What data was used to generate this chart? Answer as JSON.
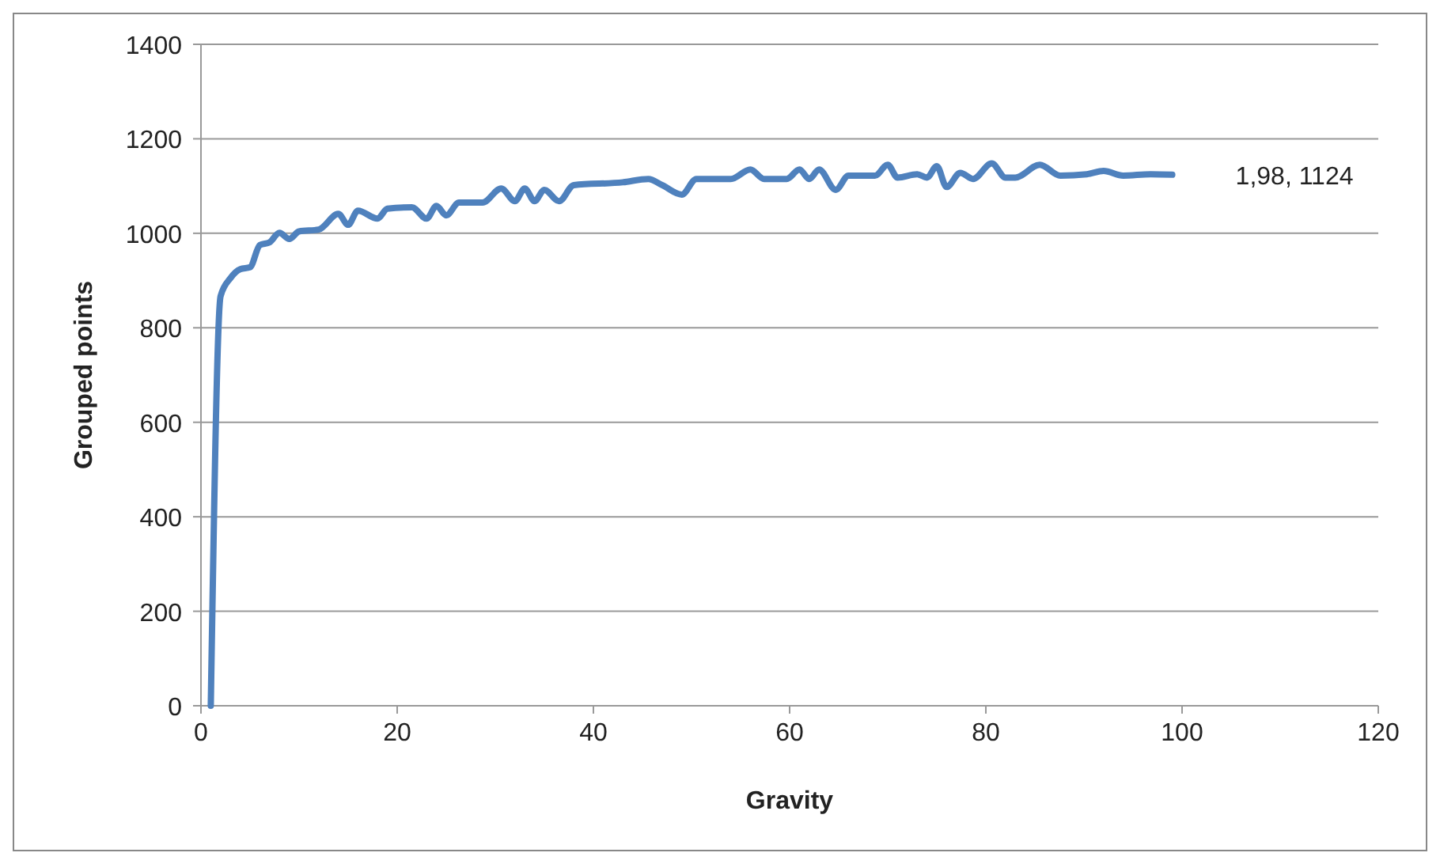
{
  "chart_data": {
    "type": "line",
    "xlabel": "Gravity",
    "ylabel": "Grouped points",
    "xlim": [
      0,
      120
    ],
    "xticks": [
      0,
      20,
      40,
      60,
      80,
      100,
      120
    ],
    "ylim": [
      0,
      1400
    ],
    "yticks": [
      0,
      200,
      400,
      600,
      800,
      1000,
      1200,
      1400
    ],
    "grid": "y",
    "annotations": [
      {
        "text": "1,98, 1124",
        "x": 99,
        "y": 1124
      }
    ],
    "series": [
      {
        "color": "#4f81bd",
        "x": [
          1,
          2,
          3,
          4,
          5,
          6,
          7,
          8,
          9,
          10,
          12,
          14,
          15,
          16,
          18,
          19,
          21.5,
          23,
          24,
          25,
          26.3,
          28.7,
          30.6,
          32,
          33,
          34,
          35,
          36.5,
          38,
          43,
          45.6,
          47,
          49,
          50.5,
          54,
          56,
          57.4,
          59.7,
          61,
          62,
          63,
          64.7,
          66,
          68.7,
          70,
          71,
          73,
          74,
          75,
          76,
          77.4,
          78.7,
          80.6,
          82,
          83,
          85.5,
          87.6,
          90.3,
          92,
          94,
          96.8,
          99
        ],
        "values": [
          0,
          867,
          905,
          924,
          928,
          975,
          981,
          1001,
          988,
          1004,
          1008,
          1041,
          1018,
          1048,
          1031,
          1052,
          1055,
          1031,
          1058,
          1038,
          1065,
          1065,
          1095,
          1068,
          1095,
          1068,
          1092,
          1068,
          1102,
          1108,
          1115,
          1102,
          1082,
          1115,
          1115,
          1135,
          1115,
          1115,
          1135,
          1115,
          1135,
          1092,
          1122,
          1122,
          1145,
          1118,
          1125,
          1118,
          1142,
          1098,
          1128,
          1115,
          1148,
          1118,
          1118,
          1145,
          1122,
          1125,
          1132,
          1122,
          1125,
          1124
        ]
      }
    ]
  }
}
